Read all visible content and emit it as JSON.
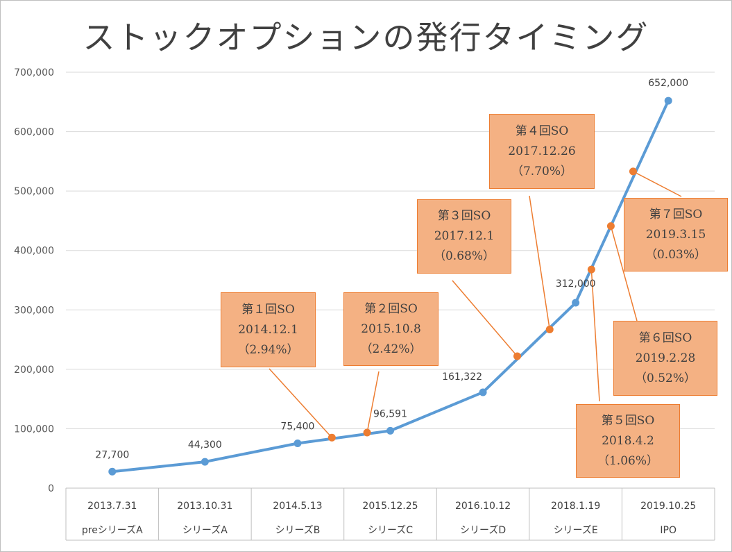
{
  "chart_data": {
    "type": "line",
    "title": "ストックオプションの発行タイミング",
    "ylim": [
      0,
      700000
    ],
    "yticks": [
      "0",
      "100,000",
      "200,000",
      "300,000",
      "400,000",
      "500,000",
      "600,000",
      "700,000"
    ],
    "grid": true,
    "categories": [
      {
        "date": "2013.7.31",
        "round": "preシリーズA"
      },
      {
        "date": "2013.10.31",
        "round": "シリーズA"
      },
      {
        "date": "2014.5.13",
        "round": "シリーズB"
      },
      {
        "date": "2015.12.25",
        "round": "シリーズC"
      },
      {
        "date": "2016.10.12",
        "round": "シリーズD"
      },
      {
        "date": "2018.1.19",
        "round": "シリーズE"
      },
      {
        "date": "2019.10.25",
        "round": "IPO"
      }
    ],
    "series": [
      {
        "color": "#5b9bd5",
        "points": [
          {
            "x": 0,
            "y": 27700,
            "label": "27,700"
          },
          {
            "x": 1,
            "y": 44300,
            "label": "44,300"
          },
          {
            "x": 2,
            "y": 75400,
            "label": "75,400"
          },
          {
            "x": 3,
            "y": 96591,
            "label": "96,591"
          },
          {
            "x": 4,
            "y": 161322,
            "label": "161,322"
          },
          {
            "x": 5,
            "y": 312000,
            "label": "312,000"
          },
          {
            "x": 6,
            "y": 652000,
            "label": "652,000"
          }
        ]
      }
    ],
    "stock_options": {
      "color": "#ed7d31",
      "box_color": "#f4b183",
      "items": [
        {
          "x": 2.37,
          "y": 85000,
          "lines": [
            "第１回SO",
            "2014.12.1",
            "（2.94%）"
          ]
        },
        {
          "x": 2.75,
          "y": 93500,
          "lines": [
            "第２回SO",
            "2015.10.8",
            "（2.42%）"
          ]
        },
        {
          "x": 4.37,
          "y": 222000,
          "lines": [
            "第３回SO",
            "2017.12.1",
            "（0.68%）"
          ]
        },
        {
          "x": 4.72,
          "y": 267000,
          "lines": [
            "第４回SO",
            "2017.12.26",
            "（7.70%）"
          ]
        },
        {
          "x": 5.17,
          "y": 368000,
          "lines": [
            "第５回SO",
            "2018.4.2",
            "（1.06%）"
          ]
        },
        {
          "x": 5.38,
          "y": 441000,
          "lines": [
            "第６回SO",
            "2019.2.28",
            "（0.52%）"
          ]
        },
        {
          "x": 5.62,
          "y": 533000,
          "lines": [
            "第７回SO",
            "2019.3.15",
            "（0.03%）"
          ]
        }
      ]
    }
  }
}
